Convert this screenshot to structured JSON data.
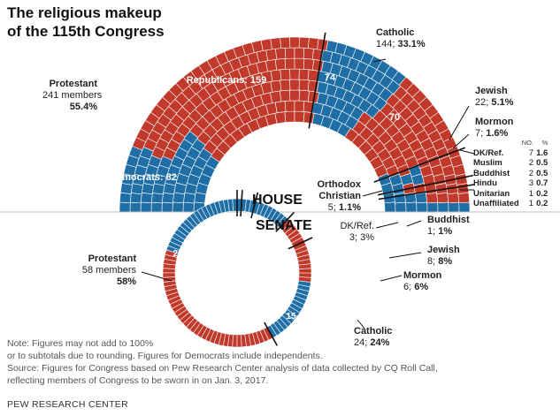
{
  "title": [
    "The religious makeup",
    "of the 115th Congress"
  ],
  "colors": {
    "republican": "#c0392b",
    "democrat": "#1f6fa6",
    "line": "#111111"
  },
  "house_label": "HOUSE",
  "senate_label": "SENATE",
  "chart_data": [
    {
      "type": "pie",
      "chamber": "House",
      "total_members": 435,
      "groups": [
        {
          "name": "Protestant",
          "label_value": "241 members",
          "percent": "55.4%",
          "republicans": 159,
          "democrats": 82
        },
        {
          "name": "Catholic",
          "label_value": "144",
          "percent": "33.1%",
          "republicans": 70,
          "democrats": 74
        },
        {
          "name": "Jewish",
          "label_value": "22",
          "percent": "5.1%"
        },
        {
          "name": "Mormon",
          "label_value": "7",
          "percent": "1.6%"
        },
        {
          "name": "Orthodox Christian",
          "label_value": "5",
          "percent": "1.1%"
        },
        {
          "name": "DK/Ref.",
          "count": 7,
          "percent": "1.6"
        },
        {
          "name": "Muslim",
          "count": 2,
          "percent": "0.5"
        },
        {
          "name": "Buddhist",
          "count": 2,
          "percent": "0.5"
        },
        {
          "name": "Hindu",
          "count": 3,
          "percent": "0.7"
        },
        {
          "name": "Unitarian",
          "count": 1,
          "percent": "0.2"
        },
        {
          "name": "Unaffiliated",
          "count": 1,
          "percent": "0.2"
        }
      ],
      "bar_labels": {
        "republicans": "Republicans: 159",
        "democrats": "Democrats: 82",
        "catholic_dem": "74",
        "catholic_rep": "70"
      }
    },
    {
      "type": "pie",
      "chamber": "Senate",
      "total_members": 100,
      "groups": [
        {
          "name": "Protestant",
          "label_value": "58 members",
          "percent": "58%",
          "republicans": 38,
          "democrats": 20
        },
        {
          "name": "Catholic",
          "label_value": "24",
          "percent": "24%",
          "republicans": 9,
          "democrats": 15
        },
        {
          "name": "Mormon",
          "label_value": "6",
          "percent": "6%"
        },
        {
          "name": "Jewish",
          "label_value": "8",
          "percent": "8%"
        },
        {
          "name": "DK/Ref.",
          "label_value": "3",
          "percent": "3%"
        },
        {
          "name": "Buddhist",
          "label_value": "1",
          "percent": "1%"
        }
      ],
      "bar_labels": {
        "prot_dem": "20",
        "prot_rep": "38",
        "catholic_dem": "15",
        "catholic_rep": "9"
      }
    }
  ],
  "other_table": {
    "headers": [
      "NO.",
      "%"
    ],
    "rows": [
      {
        "name": "DK/Ref.",
        "no": "7",
        "pct": "1.6"
      },
      {
        "name": "Muslim",
        "no": "2",
        "pct": "0.5"
      },
      {
        "name": "Buddhist",
        "no": "2",
        "pct": "0.5"
      },
      {
        "name": "Hindu",
        "no": "3",
        "pct": "0.7"
      },
      {
        "name": "Unitarian",
        "no": "1",
        "pct": "0.2"
      },
      {
        "name": "Unaffiliated",
        "no": "1",
        "pct": "0.2"
      }
    ]
  },
  "labels": {
    "catholic_name": "Catholic",
    "house_catholic_value": "144;",
    "house_catholic_pct": "33.1%",
    "protestant_name": "Protestant",
    "house_protestant_members": "241 members",
    "house_protestant_pct": "55.4%",
    "jewish_name": "Jewish",
    "house_jewish_value": "22;",
    "house_jewish_pct": "5.1%",
    "mormon_name": "Mormon",
    "house_mormon_value": "7;",
    "house_mormon_pct": "1.6%",
    "orthodox_line1": "Orthodox",
    "orthodox_line2": "Christian",
    "house_orthodox_value": "5;",
    "house_orthodox_pct": "1.1%",
    "senate_protestant_members": "58 members",
    "senate_protestant_pct": "58%",
    "buddhist_name": "Buddhist",
    "senate_buddhist_value": "1;",
    "senate_buddhist_pct": "1%",
    "dkref_name": "DK/Ref.",
    "senate_dkref_value": "3;",
    "senate_dkref_pct": "3%",
    "senate_jewish_value": "8;",
    "senate_jewish_pct": "8%",
    "senate_mormon_value": "6;",
    "senate_mormon_pct": "6%",
    "senate_catholic_value": "24;",
    "senate_catholic_pct": "24%"
  },
  "notes": [
    "Note: Figures may not add to 100%",
    "or to subtotals due to rounding. Figures for Democrats include independents.",
    "Source: Figures for Congress based on Pew Research Center analysis of data collected by CQ Roll Call,",
    "reflecting members of Congress to be sworn in on Jan. 3, 2017."
  ],
  "source_credit": "PEW RESEARCH CENTER"
}
